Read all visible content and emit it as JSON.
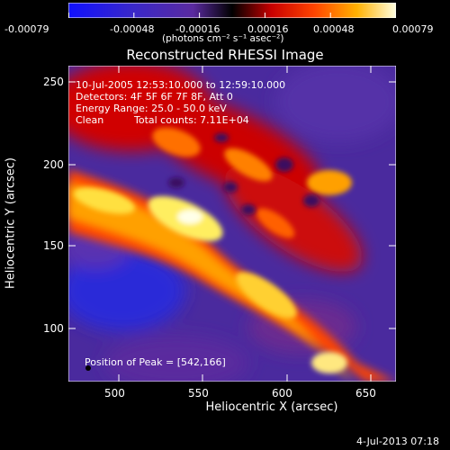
{
  "colorbar": {
    "tick_labels": [
      "-0.00079",
      "-0.00048",
      "-0.00016",
      "0.00016",
      "0.00048",
      "0.00079"
    ],
    "units": "(photons cm⁻² s⁻¹ asec⁻²)"
  },
  "title": "Reconstructed RHESSI Image",
  "annotations": {
    "time_range": "10-Jul-2005 12:53:10.000 to 12:59:10.000",
    "detectors": "Detectors: 4F 5F 6F 7F 8F, Att 0",
    "energy_range": "Energy Range: 25.0 - 50.0 keV",
    "clean_label": "Clean",
    "total_counts": "Total counts: 7.11E+04",
    "peak_position": "Position of Peak = [542,166]"
  },
  "axes": {
    "xlabel": "Heliocentric X (arcsec)",
    "ylabel": "Heliocentric Y (arcsec)",
    "xticks": [
      500,
      550,
      600,
      650
    ],
    "yticks": [
      100,
      150,
      200,
      250
    ],
    "xlim": [
      470,
      665
    ],
    "ylim": [
      67,
      263
    ]
  },
  "footer": {
    "date": "4-Jul-2013 07:18"
  },
  "chart_data": {
    "type": "heatmap",
    "title": "Reconstructed RHESSI Image",
    "xlabel": "Heliocentric X (arcsec)",
    "ylabel": "Heliocentric Y (arcsec)",
    "xlim": [
      470,
      665
    ],
    "ylim": [
      67,
      263
    ],
    "color_range": [
      -0.00079,
      0.00079
    ],
    "colorbar_ticks": [
      -0.00079,
      -0.00048,
      -0.00016,
      0.00016,
      0.00048,
      0.00079
    ],
    "peak": [
      542,
      166
    ]
  }
}
